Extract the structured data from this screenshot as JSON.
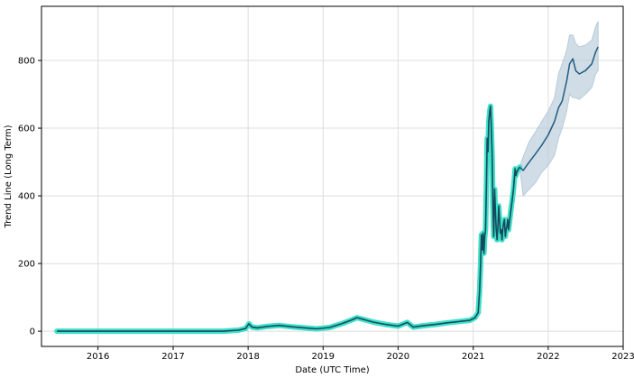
{
  "chart_data": {
    "type": "line",
    "title": "",
    "xlabel": "Date (UTC Time)",
    "ylabel": "Trend Line (Long Term)",
    "xlim": [
      "2015-04-01",
      "2023-01-01"
    ],
    "ylim": [
      -45,
      960
    ],
    "grid": true,
    "x_ticks": [
      "2016",
      "2017",
      "2018",
      "2019",
      "2020",
      "2021",
      "2022",
      "2023"
    ],
    "y_ticks": [
      0,
      200,
      400,
      600,
      800
    ],
    "colors": {
      "history_band": "#40e0c8",
      "history_line": "#134b5f",
      "forecast_line": "#1f5c80",
      "forecast_band": "#b7cbd8",
      "grid": "#dddddd"
    },
    "series": [
      {
        "role": "historical",
        "x": [
          "2015-06-15",
          "2015-12-01",
          "2016-06-01",
          "2016-12-01",
          "2017-06-01",
          "2017-09-01",
          "2017-11-15",
          "2017-12-20",
          "2018-01-05",
          "2018-01-20",
          "2018-02-15",
          "2018-04-01",
          "2018-06-01",
          "2018-08-01",
          "2018-10-01",
          "2018-12-01",
          "2019-02-01",
          "2019-04-01",
          "2019-05-15",
          "2019-06-15",
          "2019-07-15",
          "2019-09-01",
          "2019-11-01",
          "2020-01-01",
          "2020-02-15",
          "2020-03-15",
          "2020-05-01",
          "2020-07-01",
          "2020-09-01",
          "2020-11-01",
          "2020-12-15",
          "2021-01-10",
          "2021-01-25",
          "2021-02-01",
          "2021-02-06",
          "2021-02-10",
          "2021-02-14",
          "2021-02-18",
          "2021-02-22",
          "2021-02-26",
          "2021-03-02",
          "2021-03-06",
          "2021-03-10",
          "2021-03-14",
          "2021-03-18",
          "2021-03-22",
          "2021-03-26",
          "2021-03-30",
          "2021-04-03",
          "2021-04-07",
          "2021-04-11",
          "2021-04-15",
          "2021-04-19",
          "2021-04-23",
          "2021-04-27",
          "2021-05-01",
          "2021-05-05",
          "2021-05-09",
          "2021-05-13",
          "2021-05-17",
          "2021-05-21",
          "2021-05-25",
          "2021-05-29",
          "2021-06-02",
          "2021-06-06",
          "2021-06-10",
          "2021-06-14",
          "2021-06-18",
          "2021-06-22",
          "2021-06-26",
          "2021-06-30",
          "2021-07-04",
          "2021-07-08",
          "2021-07-12",
          "2021-07-16",
          "2021-07-20",
          "2021-07-24",
          "2021-07-28",
          "2021-08-01",
          "2021-08-05",
          "2021-08-10",
          "2021-08-15"
        ],
        "y": [
          0,
          0,
          0,
          0,
          0,
          0,
          3,
          8,
          22,
          12,
          10,
          14,
          17,
          13,
          10,
          7,
          11,
          22,
          32,
          40,
          35,
          27,
          20,
          15,
          26,
          12,
          16,
          20,
          25,
          29,
          32,
          40,
          55,
          120,
          200,
          285,
          240,
          290,
          230,
          280,
          300,
          420,
          570,
          530,
          620,
          650,
          665,
          600,
          520,
          370,
          280,
          420,
          360,
          300,
          270,
          310,
          370,
          330,
          290,
          300,
          270,
          300,
          320,
          330,
          280,
          300,
          310,
          330,
          300,
          320,
          340,
          360,
          380,
          400,
          420,
          450,
          480,
          460,
          470,
          475,
          480,
          485
        ]
      },
      {
        "role": "forecast",
        "x": [
          "2021-08-15",
          "2021-09-01",
          "2021-10-01",
          "2021-11-01",
          "2021-12-01",
          "2022-01-01",
          "2022-02-01",
          "2022-02-20",
          "2022-03-10",
          "2022-04-01",
          "2022-04-15",
          "2022-05-01",
          "2022-05-15",
          "2022-06-01",
          "2022-07-01",
          "2022-08-01",
          "2022-08-20",
          "2022-09-01"
        ],
        "y": [
          485,
          475,
          500,
          525,
          550,
          580,
          620,
          660,
          680,
          740,
          790,
          805,
          770,
          760,
          770,
          790,
          825,
          840
        ],
        "lower": [
          485,
          400,
          420,
          440,
          470,
          490,
          520,
          570,
          600,
          650,
          700,
          690,
          690,
          685,
          700,
          720,
          760,
          770
        ],
        "upper": [
          485,
          515,
          560,
          590,
          620,
          650,
          690,
          760,
          790,
          830,
          875,
          875,
          850,
          840,
          845,
          860,
          900,
          915
        ]
      }
    ]
  }
}
